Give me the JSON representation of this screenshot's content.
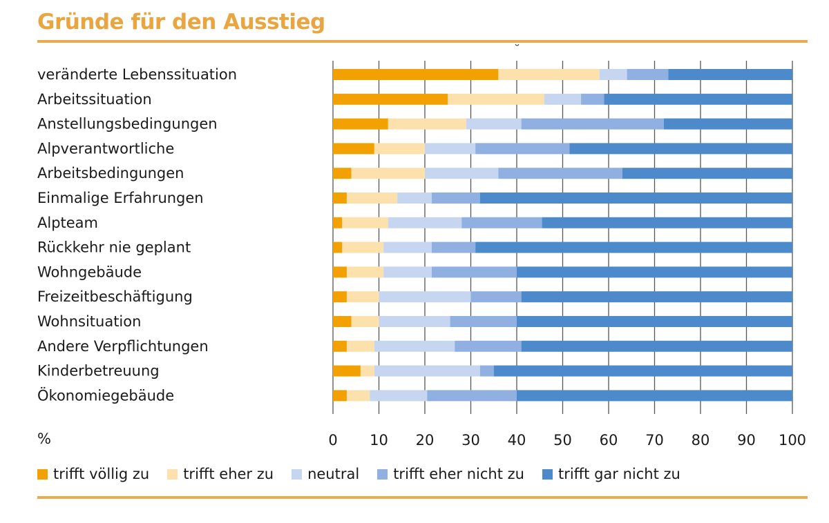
{
  "chart_data": {
    "type": "bar",
    "orientation": "horizontal",
    "stacked": true,
    "title": "Gründe für den Ausstieg",
    "xlabel": "%",
    "ylabel": "",
    "xlim": [
      0,
      100
    ],
    "xticks": [
      "0",
      "10",
      "20",
      "30",
      "40",
      "50",
      "60",
      "70",
      "80",
      "90",
      "100"
    ],
    "grid": "vertical",
    "legend_position": "bottom",
    "categories": [
      "veränderte Lebenssituation",
      "Arbeitssituation",
      "Anstellungsbedingungen",
      "Alpverantwortliche",
      "Arbeitsbedingungen",
      "Einmalige Erfahrungen",
      "Alpteam",
      "Rückkehr nie geplant",
      "Wohngebäude",
      "Freizeitbeschäftigung",
      "Wohnsituation",
      "Andere Verpflichtungen",
      "Kinderbetreuung",
      "Ökonomiegebäude"
    ],
    "series": [
      {
        "name": "trifft völlig zu",
        "color": "#f2a100",
        "values": [
          36,
          25,
          12,
          9,
          4,
          3,
          2,
          2,
          3,
          3,
          4,
          3,
          6,
          3
        ]
      },
      {
        "name": "trifft eher zu",
        "color": "#fde1ad",
        "values": [
          22,
          21,
          17,
          11,
          16,
          11,
          10,
          9,
          8,
          7,
          6,
          6,
          3,
          5
        ]
      },
      {
        "name": "neutral",
        "color": "#c6d6f1",
        "values": [
          6,
          8,
          12,
          11,
          16,
          7.5,
          16,
          10.5,
          10.5,
          20,
          15.5,
          17.5,
          23,
          12.5
        ]
      },
      {
        "name": "trifft eher nicht zu",
        "color": "#8fb0e0",
        "values": [
          9,
          5,
          31,
          20.5,
          27,
          10.5,
          17.5,
          9.5,
          18.5,
          11,
          14.5,
          14.5,
          3,
          19.5
        ]
      },
      {
        "name": "trifft gar nicht zu",
        "color": "#4d8acb",
        "values": [
          27,
          41,
          28,
          48.5,
          37,
          68,
          54.5,
          69,
          60,
          59,
          60,
          59,
          65,
          60
        ]
      }
    ]
  },
  "header": {
    "title": "Gründe für den Ausstieg",
    "stray_mark": "˘"
  },
  "axis": {
    "unit_label": "%"
  }
}
